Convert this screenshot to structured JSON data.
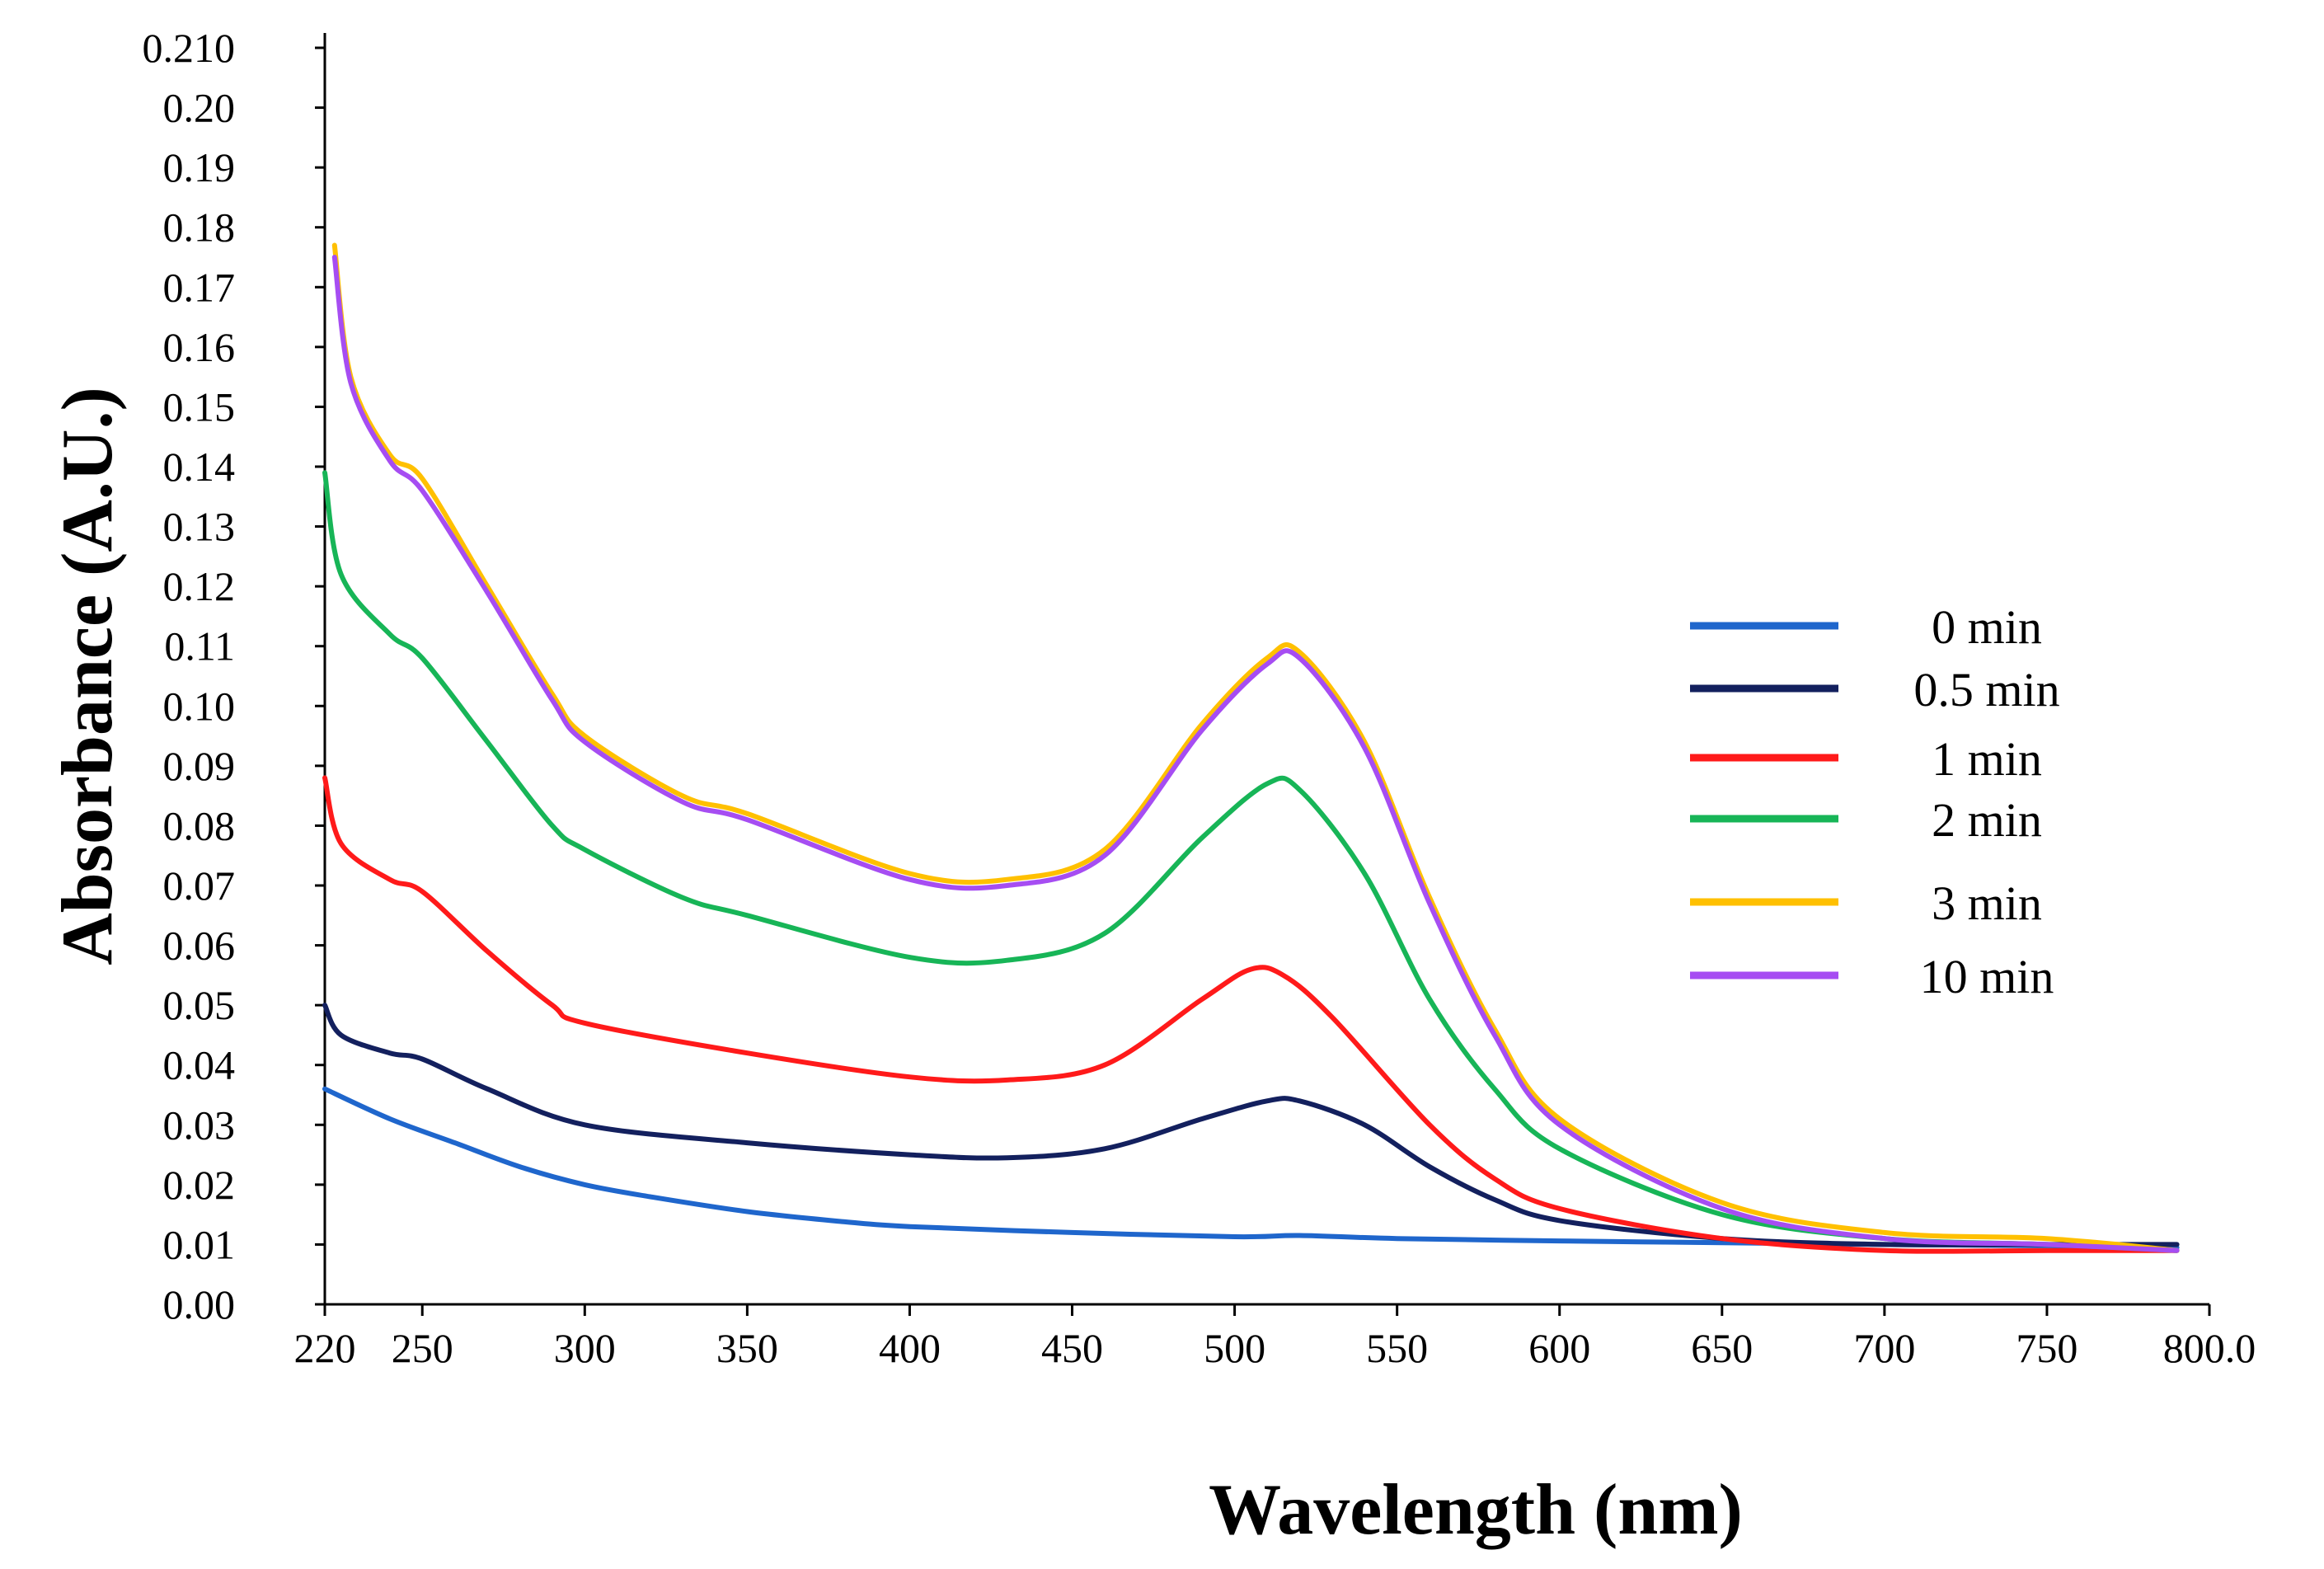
{
  "chart_data": {
    "type": "line",
    "title": "",
    "xlabel": "Wavelength (nm)",
    "ylabel": "Absorbance (A.U.)",
    "xlim": [
      220,
      800
    ],
    "ylim": [
      0,
      0.21
    ],
    "x_tick_labels": [
      "220",
      "250",
      "300",
      "350",
      "400",
      "450",
      "500",
      "550",
      "600",
      "650",
      "700",
      "750",
      "800.0"
    ],
    "x_tick_values": [
      220,
      250,
      300,
      350,
      400,
      450,
      500,
      550,
      600,
      650,
      700,
      750,
      800
    ],
    "y_tick_labels": [
      "0.00",
      "0.01",
      "0.02",
      "0.03",
      "0.04",
      "0.05",
      "0.06",
      "0.07",
      "0.08",
      "0.09",
      "0.10",
      "0.11",
      "0.12",
      "0.13",
      "0.14",
      "0.15",
      "0.16",
      "0.17",
      "0.18",
      "0.19",
      "0.20",
      "0.210"
    ],
    "y_tick_values": [
      0,
      0.01,
      0.02,
      0.03,
      0.04,
      0.05,
      0.06,
      0.07,
      0.08,
      0.09,
      0.1,
      0.11,
      0.12,
      0.13,
      0.14,
      0.15,
      0.16,
      0.17,
      0.18,
      0.19,
      0.2,
      0.21
    ],
    "grid": false,
    "legend_position": "right",
    "series": [
      {
        "name": "0 min",
        "color": "#1f66cc",
        "x": [
          220,
          240,
          260,
          280,
          300,
          320,
          350,
          380,
          400,
          450,
          500,
          520,
          550,
          600,
          650,
          700,
          750,
          790
        ],
        "y": [
          0.036,
          0.031,
          0.027,
          0.023,
          0.02,
          0.018,
          0.0155,
          0.0138,
          0.013,
          0.012,
          0.0113,
          0.0115,
          0.011,
          0.0106,
          0.0103,
          0.01,
          0.0098,
          0.0095
        ]
      },
      {
        "name": "0.5 min",
        "color": "#13205e",
        "x": [
          220,
          225,
          240,
          250,
          270,
          300,
          350,
          400,
          430,
          460,
          490,
          510,
          520,
          540,
          560,
          580,
          600,
          650,
          700,
          750,
          790
        ],
        "y": [
          0.05,
          0.045,
          0.042,
          0.041,
          0.036,
          0.03,
          0.027,
          0.025,
          0.0245,
          0.026,
          0.031,
          0.034,
          0.034,
          0.03,
          0.023,
          0.0175,
          0.014,
          0.011,
          0.01,
          0.01,
          0.01
        ]
      },
      {
        "name": "1 min",
        "color": "#ff1a1a",
        "x": [
          220,
          225,
          240,
          250,
          270,
          290,
          300,
          350,
          400,
          430,
          460,
          490,
          505,
          515,
          530,
          560,
          580,
          600,
          650,
          700,
          750,
          790
        ],
        "y": [
          0.088,
          0.077,
          0.071,
          0.069,
          0.059,
          0.05,
          0.047,
          0.042,
          0.038,
          0.0375,
          0.04,
          0.051,
          0.056,
          0.055,
          0.048,
          0.03,
          0.021,
          0.016,
          0.011,
          0.009,
          0.009,
          0.009
        ]
      },
      {
        "name": "2 min",
        "color": "#17b557",
        "x": [
          220,
          225,
          240,
          250,
          270,
          290,
          300,
          330,
          350,
          400,
          430,
          460,
          490,
          510,
          520,
          540,
          560,
          580,
          600,
          650,
          700,
          750,
          790
        ],
        "y": [
          0.139,
          0.122,
          0.112,
          0.108,
          0.094,
          0.08,
          0.076,
          0.068,
          0.065,
          0.058,
          0.0575,
          0.062,
          0.078,
          0.087,
          0.086,
          0.072,
          0.051,
          0.036,
          0.026,
          0.015,
          0.011,
          0.01,
          0.009
        ]
      },
      {
        "name": "3 min",
        "color": "#ffc000",
        "x": [
          223,
          228,
          240,
          250,
          270,
          290,
          300,
          330,
          350,
          400,
          430,
          460,
          490,
          510,
          520,
          540,
          560,
          580,
          600,
          650,
          700,
          750,
          790
        ],
        "y": [
          0.177,
          0.155,
          0.142,
          0.138,
          0.12,
          0.102,
          0.095,
          0.085,
          0.082,
          0.072,
          0.071,
          0.076,
          0.097,
          0.108,
          0.109,
          0.094,
          0.068,
          0.046,
          0.031,
          0.017,
          0.012,
          0.011,
          0.009
        ]
      },
      {
        "name": "10 min",
        "color": "#a64df2",
        "x": [
          223,
          228,
          240,
          250,
          270,
          290,
          300,
          330,
          350,
          400,
          430,
          460,
          490,
          510,
          520,
          540,
          560,
          580,
          600,
          650,
          700,
          750,
          790
        ],
        "y": [
          0.175,
          0.154,
          0.141,
          0.136,
          0.119,
          0.101,
          0.094,
          0.084,
          0.081,
          0.071,
          0.07,
          0.075,
          0.096,
          0.107,
          0.108,
          0.093,
          0.067,
          0.045,
          0.03,
          0.016,
          0.011,
          0.01,
          0.009
        ]
      }
    ]
  }
}
